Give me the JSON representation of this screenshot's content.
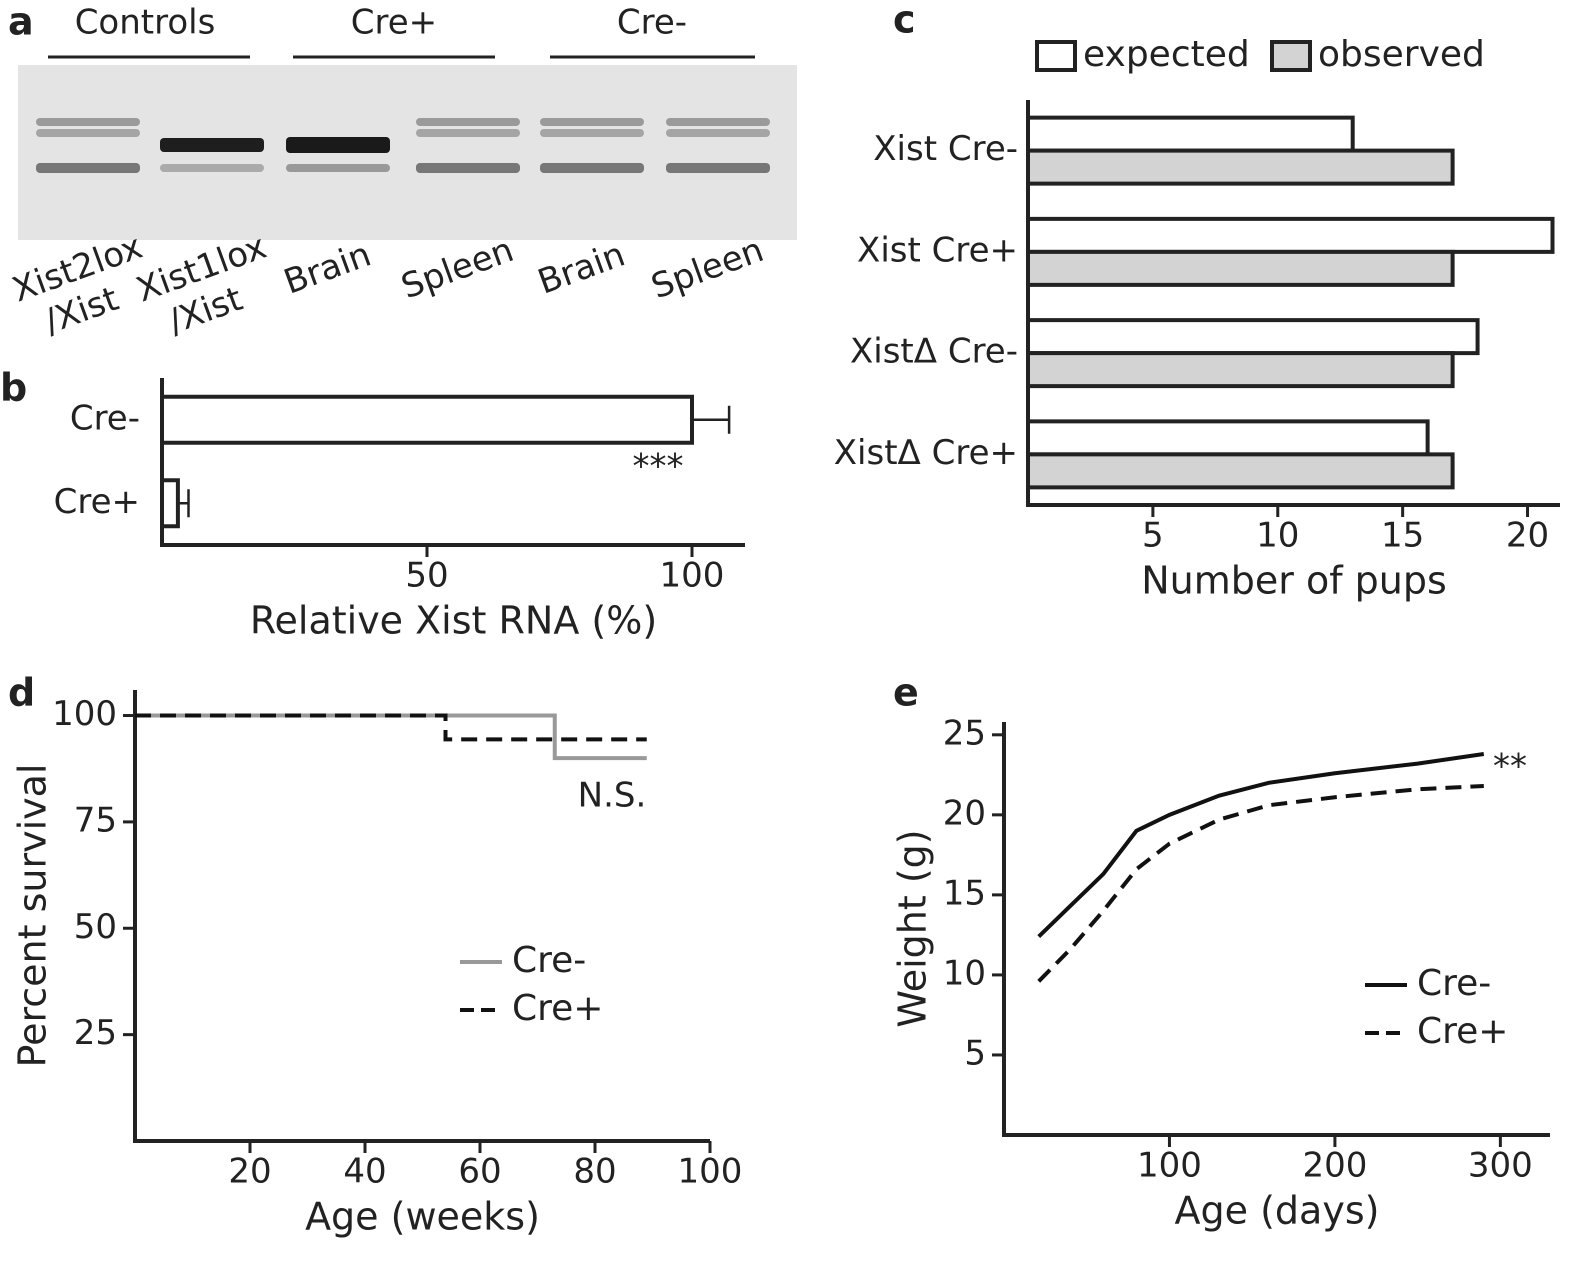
{
  "gel": {
    "panel": "a",
    "groups": [
      "Controls",
      "Cre+",
      "Cre-"
    ],
    "lanes": [
      [
        "Xist2lox",
        "/Xist"
      ],
      [
        "Xist1lox",
        "/Xist"
      ],
      [
        "Brain"
      ],
      [
        "Spleen"
      ],
      [
        "Brain"
      ],
      [
        "Spleen"
      ]
    ]
  },
  "chart_data": [
    {
      "type": "bar",
      "panel": "b",
      "orientation": "horizontal",
      "categories": [
        "Cre-",
        "Cre+"
      ],
      "values": [
        100,
        3
      ],
      "errors": [
        7,
        2
      ],
      "color": "#ffffff",
      "xlim": [
        0,
        110
      ],
      "xticks": [
        50,
        100
      ],
      "xlabel": "Relative Xist RNA (%)",
      "annotation": "***"
    },
    {
      "type": "bar",
      "panel": "c",
      "orientation": "horizontal",
      "categories": [
        "Xist Cre-",
        "Xist Cre+",
        "XistΔ Cre-",
        "XistΔ Cre+"
      ],
      "series": [
        {
          "name": "expected",
          "color": "#ffffff",
          "values": [
            13,
            21,
            18,
            16
          ]
        },
        {
          "name": "observed",
          "color": "#d3d3d3",
          "values": [
            17,
            17,
            17,
            17
          ]
        }
      ],
      "xlim": [
        0,
        21.3
      ],
      "xticks": [
        5,
        10,
        15,
        20
      ],
      "xlabel": "Number of pups"
    },
    {
      "type": "line",
      "panel": "d",
      "xlabel": "Age (weeks)",
      "ylabel": "Percent survival",
      "xlim": [
        0,
        100
      ],
      "xticks": [
        20,
        40,
        60,
        80,
        100
      ],
      "ylim": [
        0,
        106
      ],
      "yticks": [
        25,
        50,
        75,
        100
      ],
      "series": [
        {
          "name": "Cre-",
          "color": "#999999",
          "linestyle": "solid",
          "x": [
            0,
            73,
            73,
            89
          ],
          "values": [
            100,
            100,
            90,
            90
          ]
        },
        {
          "name": "Cre+",
          "color": "#111111",
          "linestyle": "dashed",
          "x": [
            0,
            54,
            54,
            89
          ],
          "values": [
            100,
            100,
            94.4,
            94.4
          ]
        }
      ],
      "annotation": "N.S."
    },
    {
      "type": "line",
      "panel": "e",
      "xlabel": "Age (days)",
      "ylabel": "Weight (g)",
      "xlim": [
        0,
        330
      ],
      "xticks": [
        100,
        200,
        300
      ],
      "ylim": [
        0,
        25.8
      ],
      "yticks": [
        5,
        10,
        15,
        20,
        25
      ],
      "series": [
        {
          "name": "Cre-",
          "color": "#111111",
          "linestyle": "solid",
          "x": [
            21,
            40,
            60,
            80,
            100,
            130,
            160,
            200,
            250,
            290
          ],
          "values": [
            12.4,
            14.3,
            16.3,
            19,
            20,
            21.2,
            22,
            22.6,
            23.2,
            23.8
          ]
        },
        {
          "name": "Cre+",
          "color": "#111111",
          "linestyle": "dashed",
          "x": [
            21,
            40,
            60,
            80,
            100,
            130,
            160,
            200,
            250,
            290
          ],
          "values": [
            9.6,
            11.6,
            14,
            16.6,
            18.2,
            19.7,
            20.6,
            21.1,
            21.6,
            21.8
          ]
        }
      ],
      "annotation": "**"
    }
  ]
}
